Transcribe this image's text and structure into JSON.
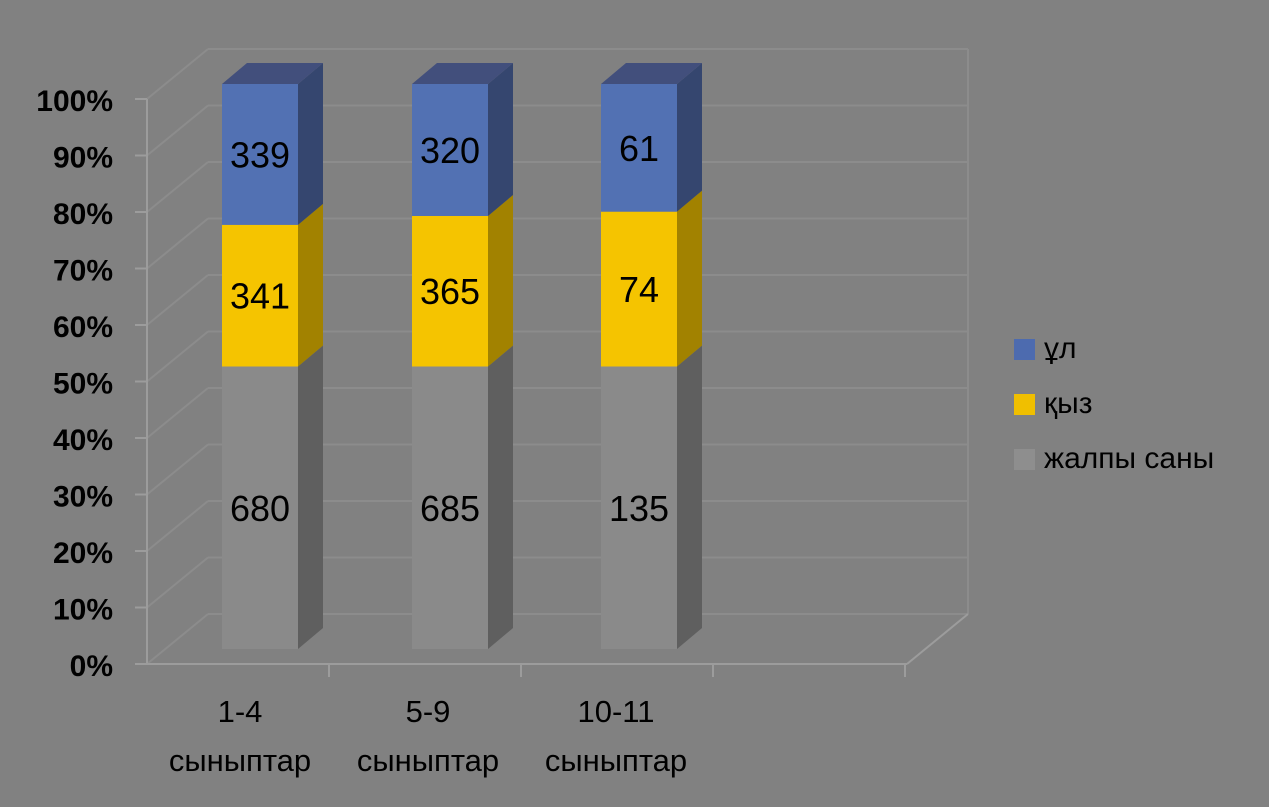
{
  "chart_data": {
    "type": "bar",
    "subtype": "100-percent-stacked-3d-column",
    "title": "",
    "categories": [
      "1-4 сыныптар",
      "5-9 сыныптар",
      "10-11 сыныптар"
    ],
    "category_label_lines": [
      [
        "1-4",
        "сыныптар"
      ],
      [
        "5-9",
        "сыныптар"
      ],
      [
        "10-11",
        "сыныптар"
      ]
    ],
    "series": [
      {
        "name": "ұл",
        "values": [
          339,
          320,
          61
        ],
        "colors": {
          "front": "#5271B3",
          "side": "#35466F",
          "top": "#424F7C",
          "legend": "#4D6BAF"
        }
      },
      {
        "name": "қыз",
        "values": [
          341,
          365,
          74
        ],
        "colors": {
          "front": "#F5C400",
          "side": "#A28200",
          "top": "#C79F00",
          "legend": "#F0BF00"
        }
      },
      {
        "name": "жалпы саны",
        "values": [
          680,
          685,
          135
        ],
        "colors": {
          "front": "#8A8A8A",
          "side": "#5F5F5F",
          "top": "#9A9A9A",
          "legend": "#8E8E8E"
        }
      }
    ],
    "stack_order_bottom_to_top": [
      "жалпы саны",
      "қыз",
      "ұл"
    ],
    "data_labels_shown": true,
    "y_axis": {
      "ticks": [
        "0%",
        "10%",
        "20%",
        "30%",
        "40%",
        "50%",
        "60%",
        "70%",
        "80%",
        "90%",
        "100%"
      ],
      "min": 0,
      "max": 100,
      "unit": "percent"
    },
    "legend": {
      "position": "right",
      "entries": [
        "ұл",
        "қыз",
        "жалпы саны"
      ]
    },
    "background_color": "#818181",
    "wall_gridline_color": "#8C8C8C",
    "axis_line_color": "#9C9C9C",
    "label_color": "#000000"
  }
}
